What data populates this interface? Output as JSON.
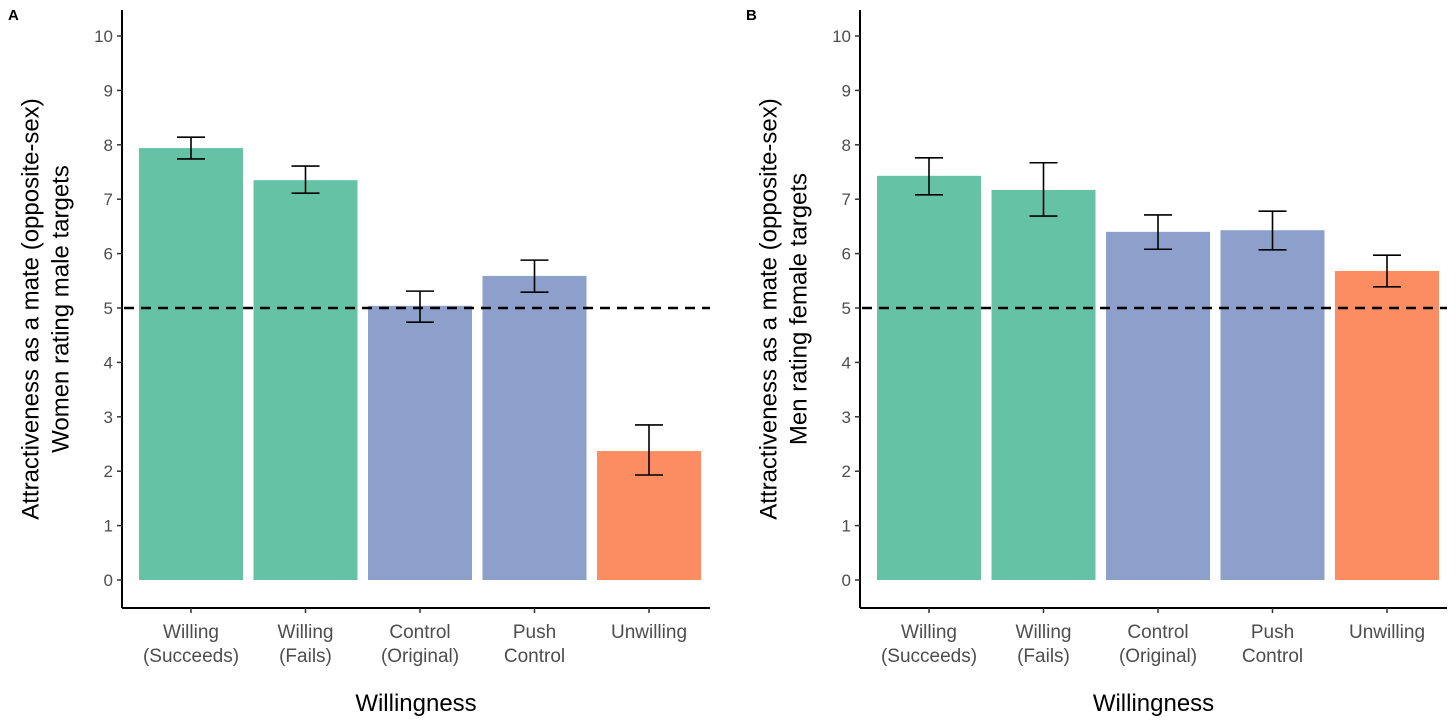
{
  "chart_data": [
    {
      "type": "bar",
      "panel": "A",
      "categories": [
        "Willing\n(Succeeds)",
        "Willing\n(Fails)",
        "Control\n(Original)",
        "Push\nControl",
        "Unwilling"
      ],
      "values": [
        7.94,
        7.35,
        5.04,
        5.59,
        2.37
      ],
      "error_low": [
        7.74,
        7.11,
        4.74,
        5.29,
        1.93
      ],
      "error_high": [
        8.14,
        7.61,
        5.31,
        5.88,
        2.85
      ],
      "colors": [
        "#66C2A5",
        "#66C2A5",
        "#8DA0CB",
        "#8DA0CB",
        "#FC8D62"
      ],
      "xlabel": "Willingness",
      "ylabel_line1": "Attractiveness as a mate (opposite-sex)",
      "ylabel_line2": "Women rating male targets",
      "ylim": [
        0,
        10
      ],
      "yticks": [
        0,
        1,
        2,
        3,
        4,
        5,
        6,
        7,
        8,
        9,
        10
      ],
      "reference_line": 5,
      "grid": false
    },
    {
      "type": "bar",
      "panel": "B",
      "categories": [
        "Willing\n(Succeeds)",
        "Willing\n(Fails)",
        "Control\n(Original)",
        "Push\nControl",
        "Unwilling"
      ],
      "values": [
        7.43,
        7.17,
        6.4,
        6.43,
        5.68
      ],
      "error_low": [
        7.08,
        6.69,
        6.08,
        6.07,
        5.39
      ],
      "error_high": [
        7.76,
        7.67,
        6.71,
        6.78,
        5.97
      ],
      "colors": [
        "#66C2A5",
        "#66C2A5",
        "#8DA0CB",
        "#8DA0CB",
        "#FC8D62"
      ],
      "xlabel": "Willingness",
      "ylabel_line1": "Attractiveness as a mate (opposite-sex)",
      "ylabel_line2": "Men rating female targets",
      "ylim": [
        0,
        10
      ],
      "yticks": [
        0,
        1,
        2,
        3,
        4,
        5,
        6,
        7,
        8,
        9,
        10
      ],
      "reference_line": 5,
      "grid": false
    }
  ]
}
